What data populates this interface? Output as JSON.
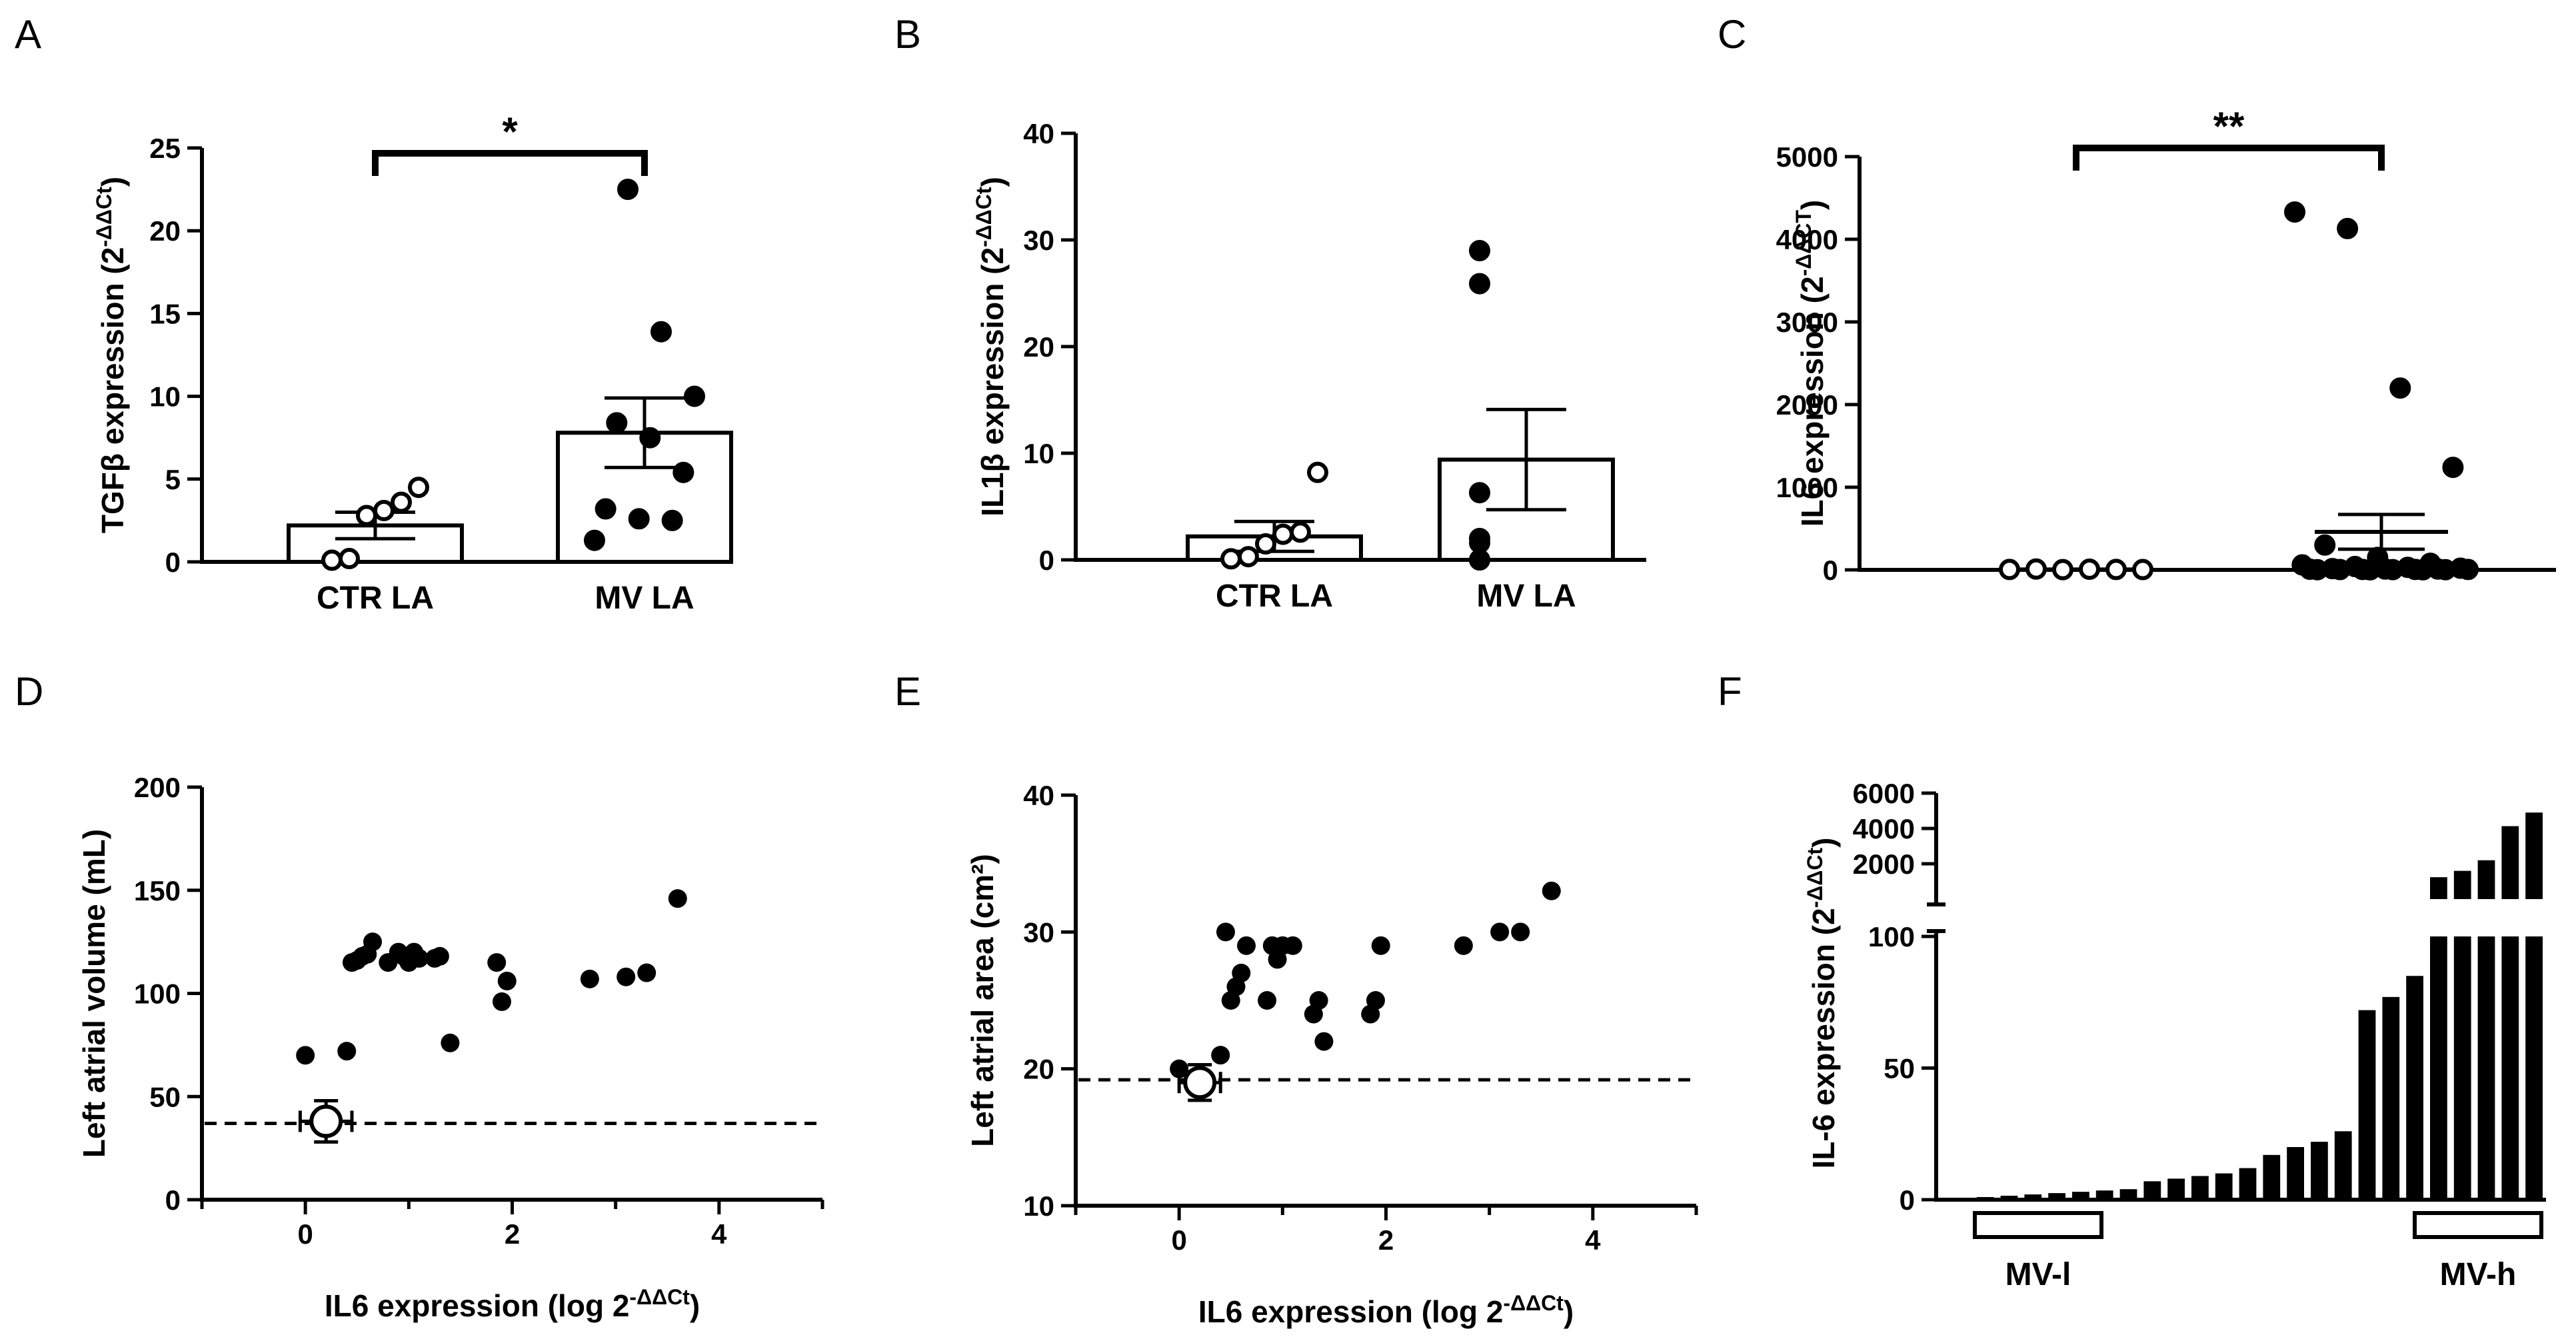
{
  "chart_data": [
    {
      "panel": "A",
      "type": "bar",
      "ylabel": "TGFβ expression (2^-ΔΔCt)",
      "yticks": [
        0,
        5,
        10,
        15,
        20,
        25
      ],
      "ylim": [
        0,
        25
      ],
      "categories": [
        "CTR LA",
        "MV LA"
      ],
      "means": [
        2.2,
        7.8
      ],
      "sem": [
        0.8,
        2.1
      ],
      "points": [
        [
          0.1,
          0.2,
          2.8,
          3.1,
          3.6,
          4.5
        ],
        [
          1.3,
          2.5,
          2.6,
          3.2,
          5.4,
          7.5,
          8.4,
          10.0,
          13.9,
          22.5
        ]
      ],
      "significance": "*"
    },
    {
      "panel": "B",
      "type": "bar",
      "ylabel": "IL1β expression (2^-ΔΔCt)",
      "yticks": [
        0,
        10,
        20,
        30,
        40
      ],
      "ylim": [
        0,
        40
      ],
      "categories": [
        "CTR LA",
        "MV LA"
      ],
      "means": [
        2.2,
        9.4
      ],
      "sem": [
        1.4,
        4.7
      ],
      "points": [
        [
          0.1,
          0.3,
          1.5,
          2.4,
          2.6,
          8.2
        ],
        [
          0.0,
          0.0,
          1.6,
          2.0,
          6.3,
          25.9,
          29.0
        ]
      ]
    },
    {
      "panel": "C",
      "type": "dot",
      "ylabel": "IL6 expression (2^-ΔΔCT)",
      "yticks": [
        0,
        1000,
        2000,
        3000,
        4000,
        5000
      ],
      "ylim": [
        0,
        5000
      ],
      "categories": [
        "",
        ""
      ],
      "means": [
        5,
        460
      ],
      "sem": [
        2,
        210
      ],
      "points": [
        [
          5,
          10,
          3,
          8,
          5,
          4
        ],
        [
          4330,
          4130,
          2200,
          1240,
          300,
          150,
          80,
          60,
          40,
          30,
          20,
          15,
          10,
          10,
          8,
          5,
          5,
          5,
          4,
          3,
          2,
          2,
          1,
          1
        ]
      ],
      "significance": "**"
    },
    {
      "panel": "D",
      "type": "scatter",
      "xlabel": "IL6 expression (log 2^-ΔΔCt)",
      "ylabel": "Left atrial volume (mL)",
      "xticks": [
        0,
        2,
        4
      ],
      "xlim": [
        -1,
        5
      ],
      "yticks": [
        0,
        50,
        100,
        150,
        200
      ],
      "ylim": [
        0,
        200
      ],
      "points": [
        [
          0,
          70
        ],
        [
          0.4,
          72
        ],
        [
          0.45,
          115
        ],
        [
          0.5,
          116
        ],
        [
          0.55,
          118
        ],
        [
          0.6,
          119
        ],
        [
          0.65,
          125
        ],
        [
          0.8,
          115
        ],
        [
          0.9,
          120
        ],
        [
          0.95,
          118
        ],
        [
          1.0,
          115
        ],
        [
          1.05,
          120
        ],
        [
          1.1,
          117
        ],
        [
          1.25,
          117
        ],
        [
          1.3,
          118
        ],
        [
          1.4,
          76
        ],
        [
          1.85,
          115
        ],
        [
          1.9,
          96
        ],
        [
          1.95,
          106
        ],
        [
          2.75,
          107
        ],
        [
          3.1,
          108
        ],
        [
          3.3,
          110
        ],
        [
          3.6,
          146
        ]
      ],
      "control": {
        "x": 0.2,
        "y": 38,
        "xerr": 0.25,
        "yerr": 10
      },
      "reference_line": 37
    },
    {
      "panel": "E",
      "type": "scatter",
      "xlabel": "IL6 expression (log 2^-ΔΔCt)",
      "ylabel": "Left atrial area (cm²)",
      "xticks": [
        0,
        2,
        4
      ],
      "xlim": [
        -1,
        5
      ],
      "yticks": [
        10,
        20,
        30,
        40
      ],
      "ylim": [
        10,
        40
      ],
      "points": [
        [
          0,
          20
        ],
        [
          0.4,
          21
        ],
        [
          0.45,
          30
        ],
        [
          0.5,
          25
        ],
        [
          0.55,
          26
        ],
        [
          0.6,
          27
        ],
        [
          0.65,
          29
        ],
        [
          0.85,
          25
        ],
        [
          0.9,
          29
        ],
        [
          0.95,
          28
        ],
        [
          1.0,
          29
        ],
        [
          1.1,
          29
        ],
        [
          1.3,
          24
        ],
        [
          1.35,
          25
        ],
        [
          1.4,
          22
        ],
        [
          1.85,
          24
        ],
        [
          1.9,
          25
        ],
        [
          1.95,
          29
        ],
        [
          2.75,
          29
        ],
        [
          3.1,
          30
        ],
        [
          3.3,
          30
        ],
        [
          3.6,
          33
        ]
      ],
      "control": {
        "x": 0.2,
        "y": 19,
        "xerr": 0.2,
        "yerr": 1.3
      },
      "reference_line": 19.2
    },
    {
      "panel": "F",
      "type": "bar",
      "ylabel": "IL-6 expression (2^-ΔΔCt)",
      "yticks_lower": [
        0,
        50,
        100
      ],
      "ylim_lower": [
        0,
        100
      ],
      "yticks_upper": [
        2000,
        4000,
        6000
      ],
      "ylim_upper": [
        0,
        6000
      ],
      "values": [
        0.5,
        1,
        1.5,
        2,
        2.5,
        3,
        3.5,
        4,
        7,
        8,
        9,
        10,
        12,
        17,
        20,
        22,
        26,
        72,
        77,
        85,
        1240,
        1600,
        2200,
        4130,
        4900
      ],
      "groups": [
        "MV-l",
        "MV-h"
      ]
    }
  ]
}
